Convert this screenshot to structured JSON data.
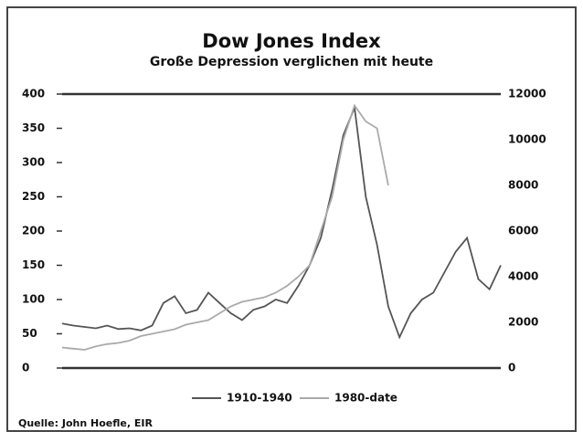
{
  "chart_data": {
    "type": "line",
    "title": "Dow Jones Index",
    "subtitle": "Große Depression verglichen mit heute",
    "source": "Quelle: John Hoefle, EIR",
    "series": [
      {
        "name": "1910-1940",
        "color": "#555555",
        "axis": "y",
        "values": [
          65,
          62,
          60,
          58,
          62,
          57,
          58,
          55,
          62,
          95,
          105,
          80,
          85,
          110,
          95,
          80,
          70,
          85,
          90,
          100,
          95,
          120,
          150,
          190,
          260,
          340,
          380,
          250,
          180,
          90,
          45,
          80,
          100,
          110,
          140,
          170,
          190,
          130,
          115,
          150
        ]
      },
      {
        "name": "1980-date",
        "color": "#aaaaaa",
        "axis": "y2",
        "values": [
          900,
          850,
          800,
          950,
          1050,
          1100,
          1200,
          1400,
          1500,
          1600,
          1700,
          1900,
          2000,
          2100,
          2400,
          2700,
          2900,
          3000,
          3100,
          3300,
          3600,
          4000,
          4500,
          6000,
          7500,
          10000,
          11500,
          10800,
          10500,
          8000,
          null,
          null,
          null,
          null,
          null,
          null,
          null,
          null,
          null,
          null
        ]
      }
    ],
    "ylim": [
      0,
      400
    ],
    "yticks": [
      0,
      50,
      100,
      150,
      200,
      250,
      300,
      350,
      400
    ],
    "y2lim": [
      0,
      12000
    ],
    "y2ticks": [
      0,
      2000,
      4000,
      6000,
      8000,
      10000,
      12000
    ]
  }
}
